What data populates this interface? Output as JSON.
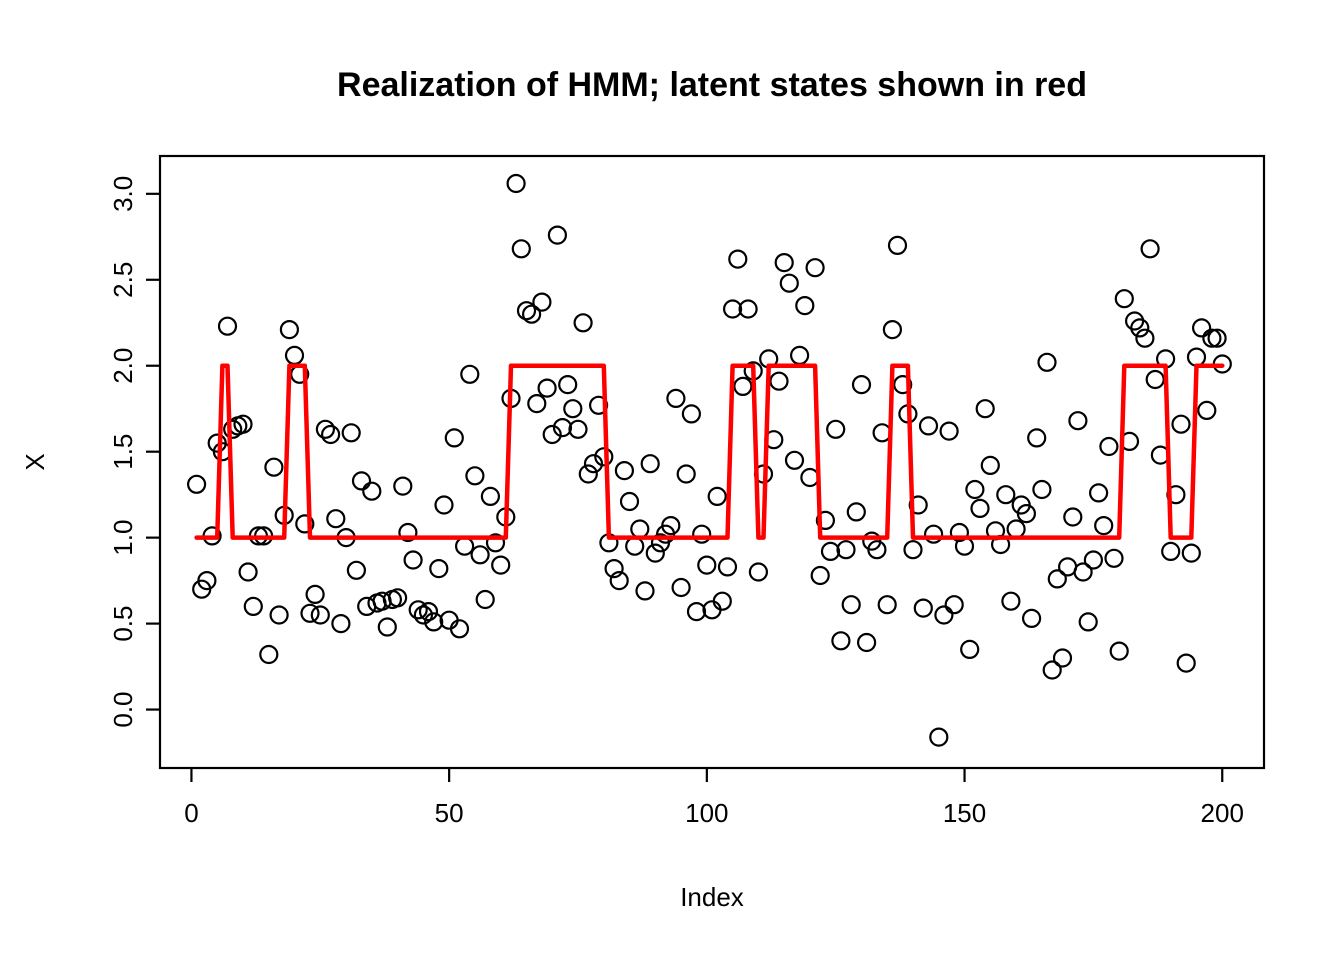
{
  "chart_data": {
    "type": "scatter",
    "title": "Realization of HMM; latent states shown in red",
    "xlabel": "Index",
    "ylabel": "X",
    "legend": "none",
    "grid": false,
    "point_color": "#000000",
    "state_line_color": "#FF0000",
    "axis_range": {
      "x": [
        -6.1,
        208.1
      ],
      "y": [
        -0.34,
        3.22
      ]
    },
    "x_ticks": {
      "values": [
        0,
        50,
        100,
        150,
        200
      ],
      "labels": [
        "0",
        "50",
        "100",
        "150",
        "200"
      ]
    },
    "y_ticks": {
      "values": [
        0.0,
        0.5,
        1.0,
        1.5,
        2.0,
        2.5,
        3.0
      ],
      "labels": [
        "0.0",
        "0.5",
        "1.0",
        "1.5",
        "2.0",
        "2.5",
        "3.0"
      ]
    },
    "observations": [
      1.31,
      0.7,
      0.75,
      1.01,
      1.55,
      1.5,
      2.23,
      1.63,
      1.65,
      1.66,
      0.8,
      0.6,
      1.01,
      1.01,
      0.32,
      1.41,
      0.55,
      1.13,
      2.21,
      2.06,
      1.95,
      1.08,
      0.56,
      0.67,
      0.55,
      1.63,
      1.6,
      1.11,
      0.5,
      1.0,
      1.61,
      0.81,
      1.33,
      0.6,
      1.27,
      0.62,
      0.63,
      0.48,
      0.64,
      0.65,
      1.3,
      1.03,
      0.87,
      0.58,
      0.55,
      0.57,
      0.51,
      0.82,
      1.19,
      0.52,
      1.58,
      0.47,
      0.95,
      1.95,
      1.36,
      0.9,
      0.64,
      1.24,
      0.97,
      0.84,
      1.12,
      1.81,
      3.06,
      2.68,
      2.32,
      2.3,
      1.78,
      2.37,
      1.87,
      1.6,
      2.76,
      1.64,
      1.89,
      1.75,
      1.63,
      2.25,
      1.37,
      1.43,
      1.77,
      1.47,
      0.97,
      0.82,
      0.75,
      1.39,
      1.21,
      0.95,
      1.05,
      0.69,
      1.43,
      0.91,
      0.97,
      1.02,
      1.07,
      1.81,
      0.71,
      1.37,
      1.72,
      0.57,
      1.02,
      0.84,
      0.58,
      1.24,
      0.63,
      0.83,
      2.33,
      2.62,
      1.88,
      2.33,
      1.97,
      0.8,
      1.37,
      2.04,
      1.57,
      1.91,
      2.6,
      2.48,
      1.45,
      2.06,
      2.35,
      1.35,
      2.57,
      0.78,
      1.1,
      0.92,
      1.63,
      0.4,
      0.93,
      0.61,
      1.15,
      1.89,
      0.39,
      0.98,
      0.93,
      1.61,
      0.61,
      2.21,
      2.7,
      1.89,
      1.72,
      0.93,
      1.19,
      0.59,
      1.65,
      1.02,
      -0.16,
      0.55,
      1.62,
      0.61,
      1.03,
      0.95,
      0.35,
      1.28,
      1.17,
      1.75,
      1.42,
      1.04,
      0.96,
      1.25,
      0.63,
      1.05,
      1.19,
      1.14,
      0.53,
      1.58,
      1.28,
      2.02,
      0.23,
      0.76,
      0.3,
      0.83,
      1.12,
      1.68,
      0.8,
      0.51,
      0.87,
      1.26,
      1.07,
      1.53,
      0.88,
      0.34,
      2.39,
      1.56,
      2.26,
      2.22,
      2.16,
      2.68,
      1.92,
      1.48,
      2.04,
      0.92,
      1.25,
      1.66,
      0.27,
      0.91,
      2.05,
      2.22,
      1.74,
      2.16,
      2.16,
      2.01
    ],
    "latent_state_runs": [
      {
        "from": 1,
        "to": 5,
        "state": 1
      },
      {
        "from": 6,
        "to": 7,
        "state": 2
      },
      {
        "from": 8,
        "to": 18,
        "state": 1
      },
      {
        "from": 19,
        "to": 22,
        "state": 2
      },
      {
        "from": 23,
        "to": 61,
        "state": 1
      },
      {
        "from": 62,
        "to": 80,
        "state": 2
      },
      {
        "from": 81,
        "to": 104,
        "state": 1
      },
      {
        "from": 105,
        "to": 109,
        "state": 2
      },
      {
        "from": 110,
        "to": 111,
        "state": 1
      },
      {
        "from": 112,
        "to": 121,
        "state": 2
      },
      {
        "from": 122,
        "to": 135,
        "state": 1
      },
      {
        "from": 136,
        "to": 139,
        "state": 2
      },
      {
        "from": 140,
        "to": 180,
        "state": 1
      },
      {
        "from": 181,
        "to": 189,
        "state": 2
      },
      {
        "from": 190,
        "to": 194,
        "state": 1
      },
      {
        "from": 195,
        "to": 200,
        "state": 2
      }
    ]
  }
}
